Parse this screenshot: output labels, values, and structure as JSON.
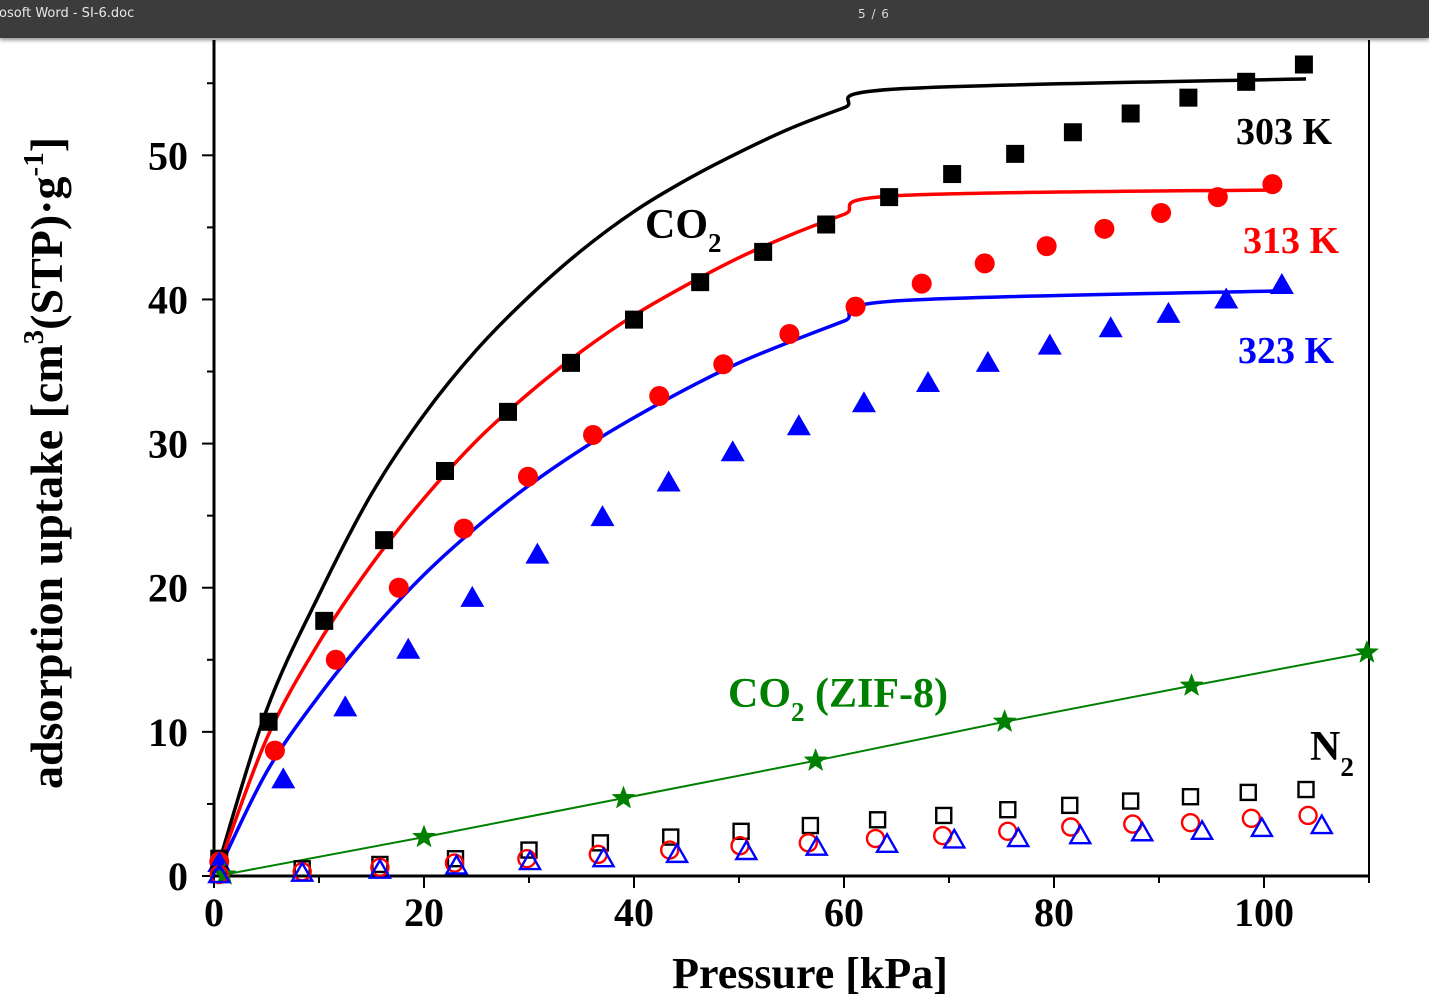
{
  "viewer": {
    "title": "rosoft Word - SI-6.doc",
    "page_indicator": "5 / 6"
  },
  "chart_data": {
    "type": "scatter",
    "xlabel": "Pressure [kPa]",
    "ylabel": "adsorption uptake [cm^3(STP)·g^-1]",
    "ylabel_parts": {
      "a": "adsorption uptake [cm",
      "sup1": "3",
      "b": "(STP)·g",
      "sup2": "-1",
      "c": "]"
    },
    "xlim": [
      0,
      110
    ],
    "ylim": [
      0,
      58
    ],
    "xticks": [
      0,
      20,
      40,
      60,
      80,
      100
    ],
    "yticks": [
      0,
      10,
      20,
      30,
      40,
      50
    ],
    "grid": false,
    "annotations": {
      "co2": {
        "main": "CO",
        "sub": "2"
      },
      "co2_zif8": {
        "main": "CO",
        "sub": "2",
        "rest": " (ZIF-8)"
      },
      "n2": {
        "main": "N",
        "sub": "2"
      }
    },
    "series": [
      {
        "name": "303 K",
        "gas": "CO2",
        "color": "#000000",
        "marker": "square",
        "filled": true,
        "x": [
          0.5,
          5.2,
          10.5,
          16.2,
          22,
          28,
          34,
          40,
          46.3,
          52.3,
          58.3,
          64.3,
          70.3,
          76.3,
          81.8,
          87.3,
          92.8,
          98.3,
          103.8
        ],
        "y": [
          1.2,
          10.7,
          17.7,
          23.3,
          28.1,
          32.2,
          35.6,
          38.6,
          41.2,
          43.3,
          45.2,
          47.1,
          48.7,
          50.1,
          51.6,
          52.9,
          54.0,
          55.1,
          56.3
        ],
        "fit_y": [
          0.5,
          11.5,
          19.5,
          26.5,
          32.0,
          36.5,
          40.2,
          43.4,
          46.1,
          48.3,
          50.2,
          51.9,
          53.3,
          54.6,
          55.3
        ]
      },
      {
        "name": "313 K",
        "gas": "CO2",
        "color": "#ff0000",
        "marker": "circle",
        "filled": true,
        "x": [
          0.5,
          5.8,
          11.6,
          17.6,
          23.8,
          29.9,
          36.1,
          42.4,
          48.5,
          54.8,
          61.1,
          67.4,
          73.4,
          79.3,
          84.8,
          90.2,
          95.6,
          100.8
        ],
        "y": [
          1.0,
          8.7,
          15.0,
          20.0,
          24.1,
          27.7,
          30.6,
          33.3,
          35.5,
          37.6,
          39.5,
          41.1,
          42.5,
          43.7,
          44.9,
          46.0,
          47.1,
          48.0
        ],
        "fit_y": [
          0.3,
          9.5,
          16.2,
          21.6,
          26.2,
          30.2,
          33.5,
          36.4,
          38.9,
          41.0,
          42.9,
          44.5,
          45.9,
          47.2,
          47.6
        ]
      },
      {
        "name": "323 K",
        "gas": "CO2",
        "color": "#0000ff",
        "marker": "triangle",
        "filled": true,
        "x": [
          0.5,
          6.6,
          12.5,
          18.5,
          24.6,
          30.8,
          37.0,
          43.3,
          49.4,
          55.7,
          61.9,
          68.0,
          73.7,
          79.6,
          85.4,
          90.9,
          96.4,
          101.7
        ],
        "y": [
          0.9,
          6.7,
          11.7,
          15.7,
          19.3,
          22.3,
          24.9,
          27.3,
          29.4,
          31.2,
          32.8,
          34.2,
          35.6,
          36.8,
          38.0,
          39.0,
          40.0,
          41.0
        ],
        "fit_y": [
          0.2,
          7.2,
          12.5,
          17.0,
          20.9,
          24.2,
          27.1,
          29.6,
          31.8,
          33.8,
          35.6,
          37.1,
          38.5,
          39.9,
          40.6
        ]
      },
      {
        "name": "CO2 (ZIF-8)",
        "gas": "CO2",
        "color": "#008000",
        "marker": "star",
        "filled": true,
        "x": [
          1,
          20,
          39,
          57.3,
          75.3,
          93.1,
          109.8
        ],
        "y": [
          0.1,
          2.7,
          5.4,
          8.0,
          10.7,
          13.2,
          15.5
        ]
      },
      {
        "name": "303 K",
        "gas": "N2",
        "color": "#000000",
        "marker": "square",
        "filled": false,
        "x": [
          0.5,
          8.4,
          15.8,
          23,
          30,
          36.8,
          43.5,
          50.2,
          56.8,
          63.2,
          69.5,
          75.6,
          81.5,
          87.3,
          93,
          98.5,
          104
        ],
        "y": [
          0.1,
          0.5,
          0.8,
          1.2,
          1.8,
          2.3,
          2.7,
          3.1,
          3.5,
          3.9,
          4.2,
          4.6,
          4.9,
          5.2,
          5.5,
          5.8,
          6.0
        ]
      },
      {
        "name": "313 K",
        "gas": "N2",
        "color": "#ff0000",
        "marker": "circle",
        "filled": false,
        "x": [
          0.5,
          8.4,
          15.8,
          22.9,
          29.8,
          36.6,
          43.4,
          50.1,
          56.6,
          63.0,
          69.4,
          75.6,
          81.6,
          87.5,
          93.0,
          98.8,
          104.2
        ],
        "y": [
          0.1,
          0.3,
          0.6,
          0.9,
          1.2,
          1.5,
          1.8,
          2.1,
          2.3,
          2.6,
          2.8,
          3.1,
          3.4,
          3.6,
          3.7,
          4.0,
          4.2
        ]
      },
      {
        "name": "323 K",
        "gas": "N2",
        "color": "#0000ff",
        "marker": "triangle",
        "filled": false,
        "x": [
          0.5,
          8.4,
          15.8,
          23.1,
          30.1,
          37.1,
          44.1,
          50.7,
          57.4,
          64.1,
          70.5,
          76.6,
          82.5,
          88.4,
          94.1,
          99.8,
          105.5
        ],
        "y": [
          0.1,
          0.2,
          0.4,
          0.7,
          1.0,
          1.2,
          1.5,
          1.7,
          2.0,
          2.2,
          2.5,
          2.6,
          2.8,
          3.0,
          3.1,
          3.3,
          3.5
        ]
      }
    ],
    "fit_x": [
      0.3,
      5,
      10,
      15,
      20,
      25,
      30,
      35,
      40,
      45,
      50,
      55,
      60,
      65,
      68
    ]
  }
}
